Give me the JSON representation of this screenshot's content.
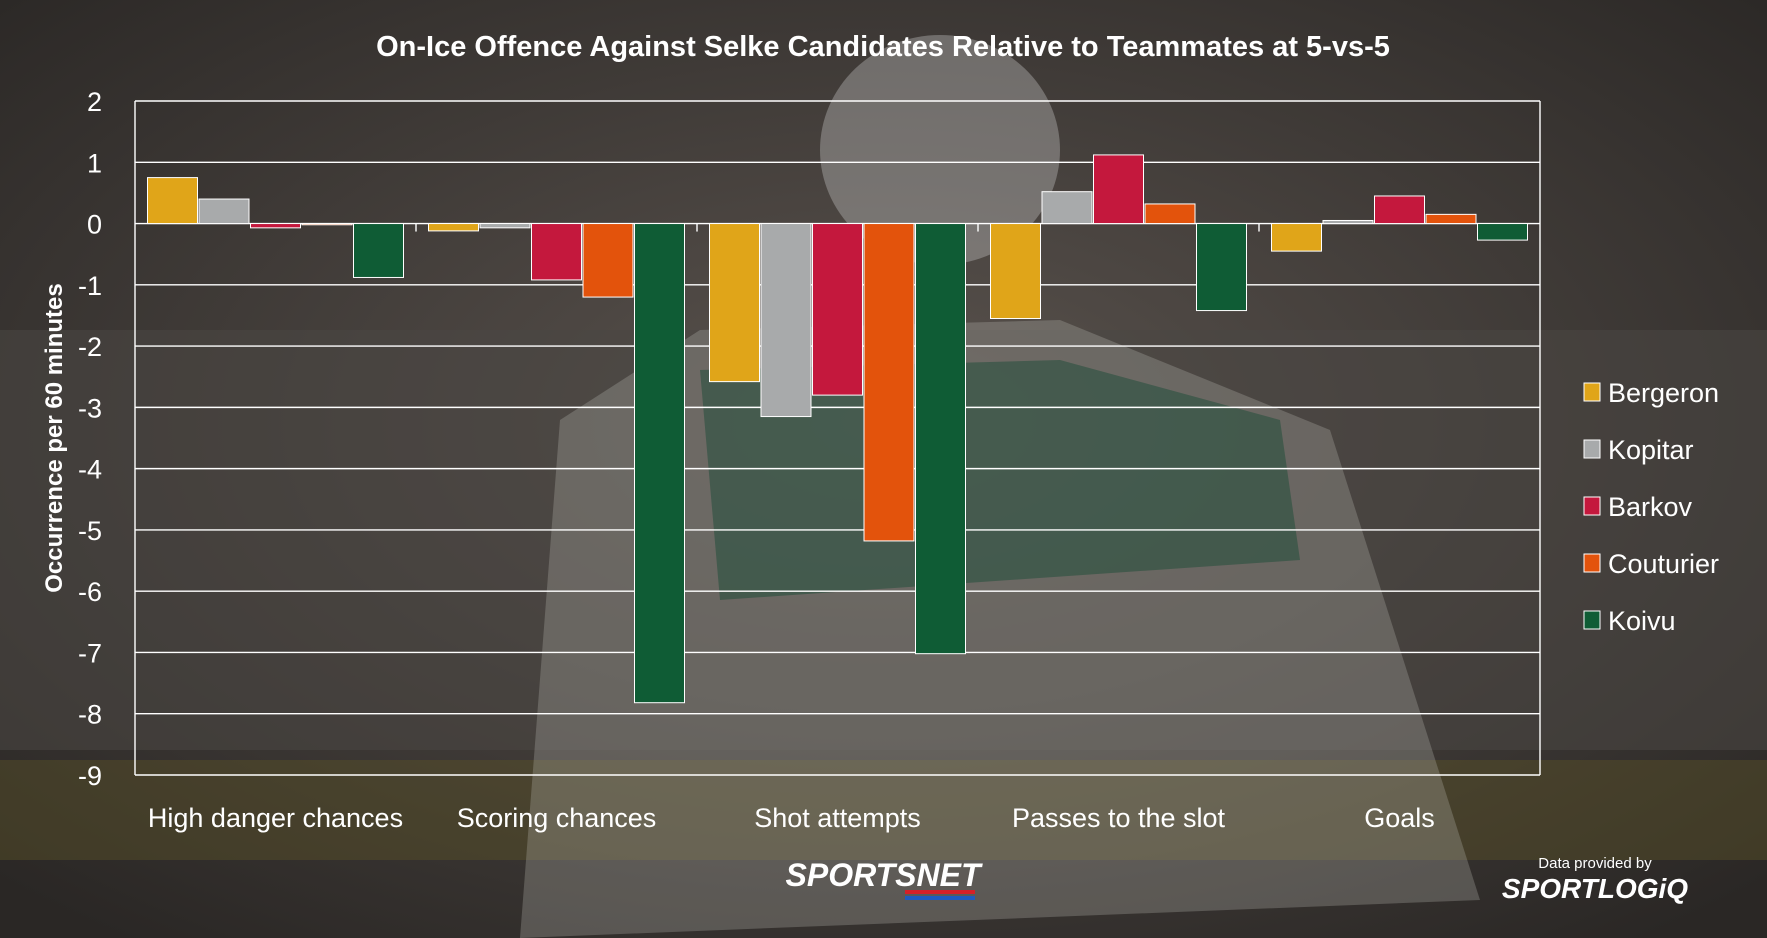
{
  "chart_data": {
    "type": "bar",
    "title": "On-Ice Offence Against Selke Candidates Relative to Teammates at 5-vs-5",
    "ylabel": "Occurrence per 60 minutes",
    "xlabel": "",
    "ylim": [
      -9,
      2
    ],
    "yticks": [
      2,
      1,
      0,
      -1,
      -2,
      -3,
      -4,
      -5,
      -6,
      -7,
      -8,
      -9
    ],
    "grid": true,
    "legend_position": "right",
    "categories": [
      "High danger chances",
      "Scoring chances",
      "Shot attempts",
      "Passes to the slot",
      "Goals"
    ],
    "series": [
      {
        "name": "Bergeron",
        "color": "#e0a519",
        "values": [
          0.75,
          -0.12,
          -2.58,
          -1.55,
          -0.45
        ]
      },
      {
        "name": "Kopitar",
        "color": "#a8aaab",
        "values": [
          0.4,
          -0.07,
          -3.15,
          0.52,
          0.05
        ]
      },
      {
        "name": "Barkov",
        "color": "#c4183d",
        "values": [
          -0.07,
          -0.92,
          -2.8,
          1.12,
          0.45
        ]
      },
      {
        "name": "Couturier",
        "color": "#e3530c",
        "values": [
          -0.02,
          -1.2,
          -5.18,
          0.32,
          0.15
        ]
      },
      {
        "name": "Koivu",
        "color": "#0f5c35",
        "values": [
          -0.88,
          -7.82,
          -7.02,
          -1.42,
          -0.27
        ]
      }
    ]
  },
  "branding": {
    "sportsnet": "SPORTSNET",
    "data_provided_by": "Data provided by",
    "sportlogiq": "SPORTLOGiQ"
  },
  "colors": {
    "background": "#3a3633",
    "gridline": "#ffffff",
    "text": "#ffffff"
  }
}
